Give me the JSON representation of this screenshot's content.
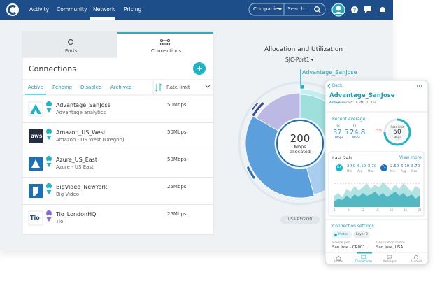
{
  "nav": {
    "items": [
      "Activity",
      "Community",
      "Network",
      "Pricing"
    ],
    "search_scope": "Companies",
    "search_placeholder": "Search..."
  },
  "panel": {
    "tabs": [
      "Ports",
      "Connections"
    ],
    "title": "Connections",
    "filters": [
      "Active",
      "Pending",
      "Disabled",
      "Archived"
    ],
    "sort_label": "Rate limit",
    "rows": [
      {
        "name": "Advantage_SanJose",
        "subtitle": "Advantage analytics",
        "rate": "50Mbps"
      },
      {
        "logo": "aws",
        "name": "Amazon_US_West",
        "subtitle": "Amazon - US West (Oregon)",
        "rate": "50Mbps"
      },
      {
        "name": "Azure_US_East",
        "subtitle": "Azure - US East",
        "rate": "50Mbps"
      },
      {
        "name": "BigVideo_NewYork",
        "subtitle": "Big Video",
        "rate": "25Mbps"
      },
      {
        "logo": "Tio",
        "name": "Tio_LondonHQ",
        "subtitle": "Tio",
        "rate": "25Mbps"
      }
    ]
  },
  "chart": {
    "title": "Allocation and Utilization",
    "port": "SJC-Port1",
    "center_value": "200",
    "center_unit": "Mbps",
    "center_label": "allocated",
    "highlight": "Advantage_SanJose",
    "region": "USA REGION"
  },
  "mobile": {
    "back": "Back",
    "title": "Advantage_SanJose",
    "status": "Active",
    "since": "since 6:19 PM, 10 Apr",
    "recent_title": "Recent average",
    "rx": {
      "label": "Rx",
      "value": "37.5",
      "unit": "Mbps"
    },
    "tx": {
      "label": "Tx",
      "value": "24.8",
      "unit": "Mbps"
    },
    "gauge": {
      "label": "Rate limit",
      "value": "50",
      "unit": "Mbps",
      "percent": "75%"
    },
    "last24": {
      "title": "Last 24h",
      "link": "View more",
      "stat_labels": [
        "Min",
        "Avg",
        "Max"
      ],
      "rx": {
        "badge": "Rx",
        "min": "2.50",
        "avg": "6.19",
        "max": "8.70"
      },
      "tx": {
        "badge": "Tx",
        "min": "2.50",
        "avg": "6.19",
        "max": "8.70"
      },
      "x_labels": [
        "6",
        "9",
        "12",
        "15",
        "18",
        "21",
        "24"
      ]
    },
    "settings": {
      "title": "Connection settings",
      "chips": [
        "Metro",
        "Layer 2"
      ],
      "source_label": "Source port",
      "source": "San Jose - CR001",
      "dest_label": "Destination metro",
      "dest": "San Jose, USA"
    },
    "tabs": [
      "Home",
      "Connections",
      "Messages",
      "Account"
    ]
  }
}
